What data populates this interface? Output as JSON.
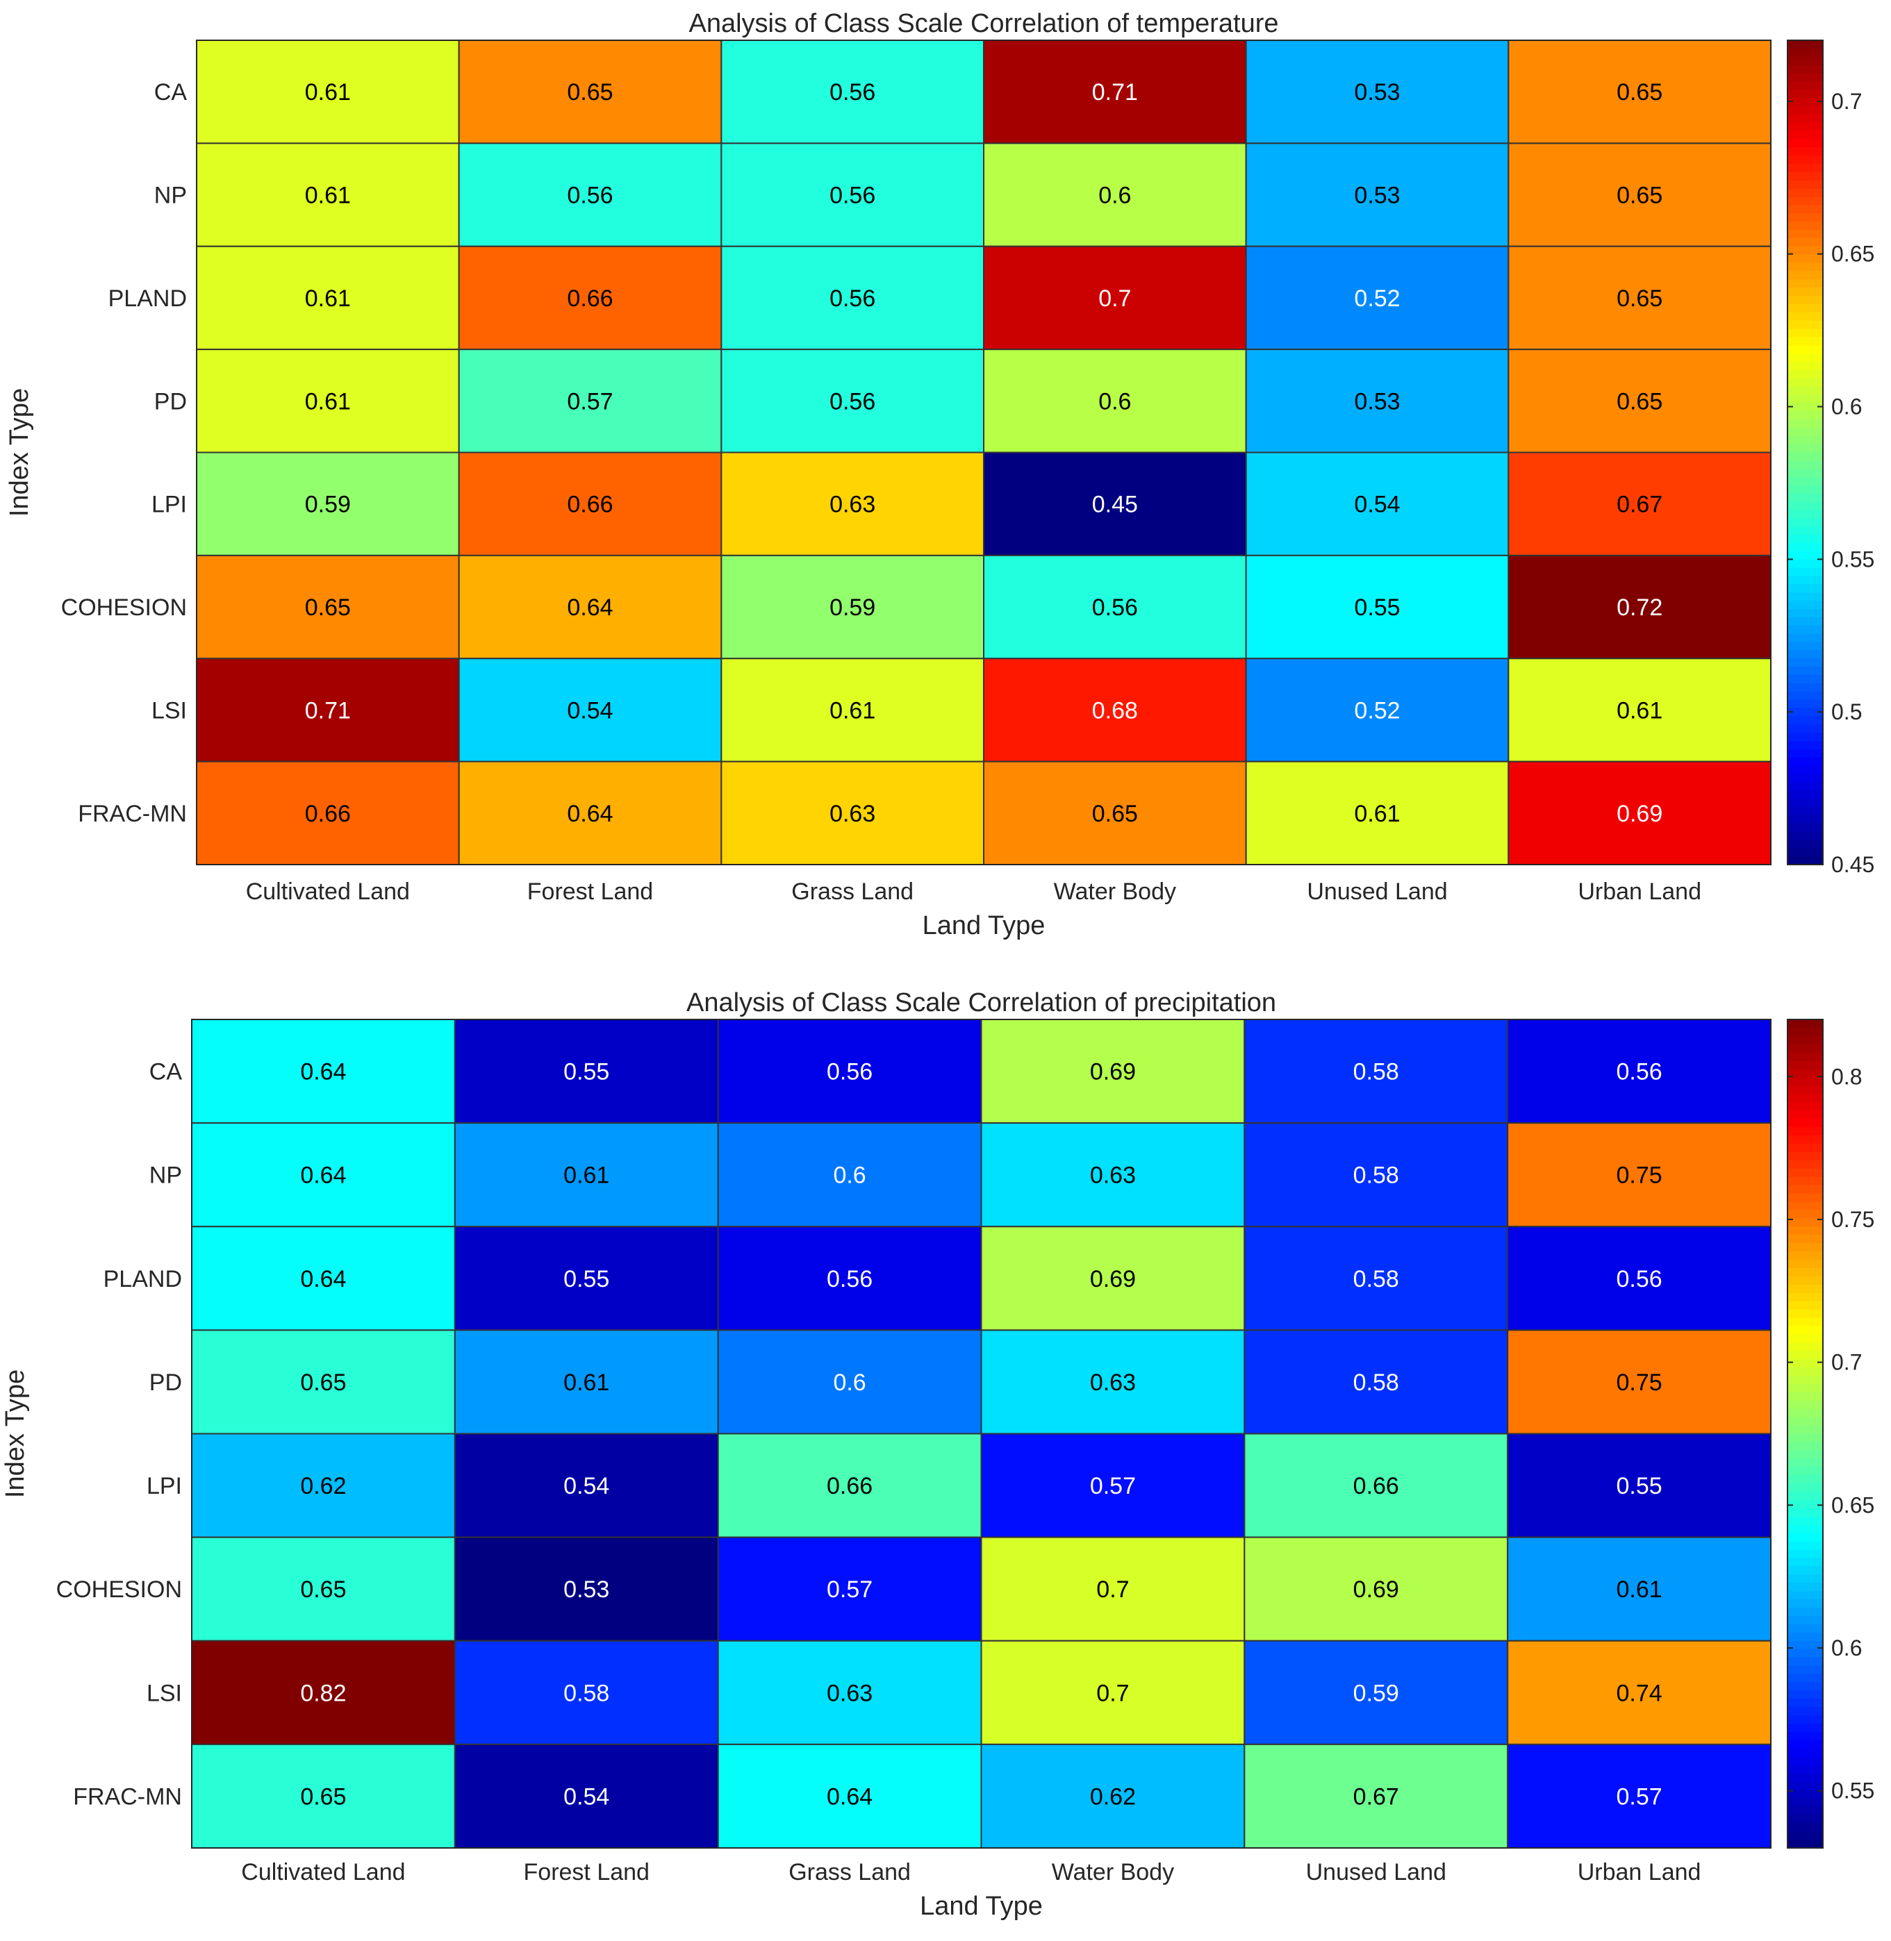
{
  "chart_data": [
    {
      "type": "heatmap",
      "title": "Analysis of Class Scale Correlation of temperature",
      "xlabel": "Land Type",
      "ylabel": "Index Type",
      "x_categories": [
        "Cultivated Land",
        "Forest Land",
        "Grass Land",
        "Water Body",
        "Unused Land",
        "Urban Land"
      ],
      "y_categories": [
        "CA",
        "NP",
        "PLAND",
        "PD",
        "LPI",
        "COHESION",
        "LSI",
        "FRAC-MN"
      ],
      "values": [
        [
          "0.61",
          "0.65",
          "0.56",
          "0.71",
          "0.53",
          "0.65"
        ],
        [
          "0.61",
          "0.56",
          "0.56",
          "0.6",
          "0.53",
          "0.65"
        ],
        [
          "0.61",
          "0.66",
          "0.56",
          "0.7",
          "0.52",
          "0.65"
        ],
        [
          "0.61",
          "0.57",
          "0.56",
          "0.6",
          "0.53",
          "0.65"
        ],
        [
          "0.59",
          "0.66",
          "0.63",
          "0.45",
          "0.54",
          "0.67"
        ],
        [
          "0.65",
          "0.64",
          "0.59",
          "0.56",
          "0.55",
          "0.72"
        ],
        [
          "0.71",
          "0.54",
          "0.61",
          "0.68",
          "0.52",
          "0.61"
        ],
        [
          "0.66",
          "0.64",
          "0.63",
          "0.65",
          "0.61",
          "0.69"
        ]
      ],
      "colormap": "jet",
      "colorbar": {
        "range": [
          0.45,
          0.72
        ],
        "ticks": [
          0.45,
          0.5,
          0.55,
          0.6,
          0.65,
          0.7
        ],
        "tick_labels": [
          "0.45",
          "0.5",
          "0.55",
          "0.6",
          "0.65",
          "0.7"
        ]
      }
    },
    {
      "type": "heatmap",
      "title": "Analysis of Class Scale Correlation of precipitation",
      "xlabel": "Land Type",
      "ylabel": "Index Type",
      "x_categories": [
        "Cultivated Land",
        "Forest Land",
        "Grass Land",
        "Water Body",
        "Unused Land",
        "Urban Land"
      ],
      "y_categories": [
        "CA",
        "NP",
        "PLAND",
        "PD",
        "LPI",
        "COHESION",
        "LSI",
        "FRAC-MN"
      ],
      "values": [
        [
          "0.64",
          "0.55",
          "0.56",
          "0.69",
          "0.58",
          "0.56"
        ],
        [
          "0.64",
          "0.61",
          "0.6",
          "0.63",
          "0.58",
          "0.75"
        ],
        [
          "0.64",
          "0.55",
          "0.56",
          "0.69",
          "0.58",
          "0.56"
        ],
        [
          "0.65",
          "0.61",
          "0.6",
          "0.63",
          "0.58",
          "0.75"
        ],
        [
          "0.62",
          "0.54",
          "0.66",
          "0.57",
          "0.66",
          "0.55"
        ],
        [
          "0.65",
          "0.53",
          "0.57",
          "0.7",
          "0.69",
          "0.61"
        ],
        [
          "0.82",
          "0.58",
          "0.63",
          "0.7",
          "0.59",
          "0.74"
        ],
        [
          "0.65",
          "0.54",
          "0.64",
          "0.62",
          "0.67",
          "0.57"
        ]
      ],
      "colormap": "jet",
      "colorbar": {
        "range": [
          0.53,
          0.82
        ],
        "ticks": [
          0.55,
          0.6,
          0.65,
          0.7,
          0.75,
          0.8
        ],
        "tick_labels": [
          "0.55",
          "0.6",
          "0.65",
          "0.7",
          "0.75",
          "0.8"
        ]
      }
    }
  ]
}
